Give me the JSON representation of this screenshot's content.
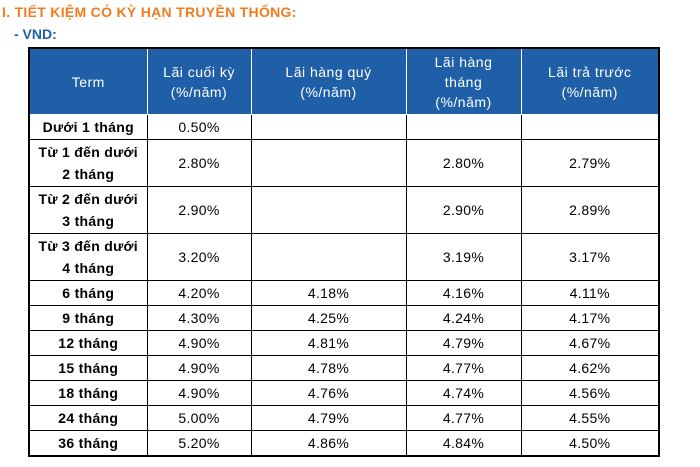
{
  "heading": "I. TIẾT KIỆM CÓ KỲ HẠN TRUYỀN THỐNG:",
  "subheading": "- VND:",
  "table": {
    "header": [
      [
        "Term"
      ],
      [
        "Lãi cuối kỳ",
        "(%/năm)"
      ],
      [
        "Lãi hàng quý",
        "(%/năm)"
      ],
      [
        "Lãi hàng",
        "tháng",
        "(%/năm)"
      ],
      [
        "Lãi trả trước",
        "(%/năm)"
      ]
    ],
    "rows": [
      {
        "term": [
          "Dưới 1 tháng"
        ],
        "values": [
          "0.50%",
          null,
          null,
          null
        ]
      },
      {
        "term": [
          "Từ 1 đến dưới",
          "2 tháng"
        ],
        "values": [
          "2.80%",
          null,
          "2.80%",
          "2.79%"
        ]
      },
      {
        "term": [
          "Từ 2 đến dưới",
          "3 tháng"
        ],
        "values": [
          "2.90%",
          null,
          "2.90%",
          "2.89%"
        ]
      },
      {
        "term": [
          "Từ 3 đến dưới",
          "4 tháng"
        ],
        "values": [
          "3.20%",
          null,
          "3.19%",
          "3.17%"
        ]
      },
      {
        "term": [
          "6 tháng"
        ],
        "values": [
          "4.20%",
          "4.18%",
          "4.16%",
          "4.11%"
        ]
      },
      {
        "term": [
          "9 tháng"
        ],
        "values": [
          "4.30%",
          "4.25%",
          "4.24%",
          "4.17%"
        ]
      },
      {
        "term": [
          "12 tháng"
        ],
        "values": [
          "4.90%",
          "4.81%",
          "4.79%",
          "4.67%"
        ]
      },
      {
        "term": [
          "15 tháng"
        ],
        "values": [
          "4.90%",
          "4.78%",
          "4.77%",
          "4.62%"
        ]
      },
      {
        "term": [
          "18 tháng"
        ],
        "values": [
          "4.90%",
          "4.76%",
          "4.74%",
          "4.56%"
        ]
      },
      {
        "term": [
          "24 tháng"
        ],
        "values": [
          "5.00%",
          "4.79%",
          "4.77%",
          "4.55%"
        ]
      },
      {
        "term": [
          "36 tháng"
        ],
        "values": [
          "5.20%",
          "4.86%",
          "4.84%",
          "4.50%"
        ]
      }
    ]
  }
}
